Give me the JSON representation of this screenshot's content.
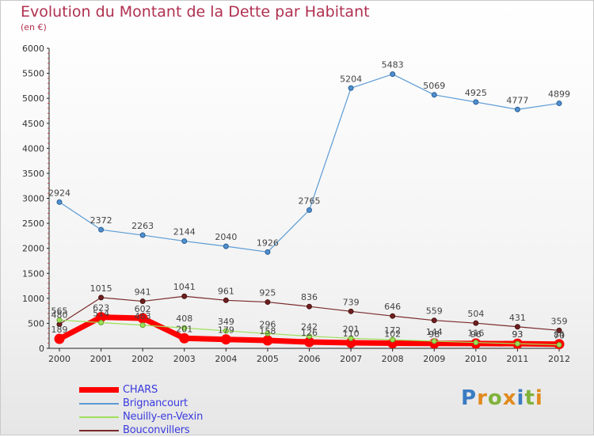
{
  "title": "Evolution du Montant de la Dette par Habitant",
  "subtitle": "(en €)",
  "brand": "Proxiti",
  "chart_data": {
    "type": "line",
    "title": "Evolution du Montant de la Dette par Habitant",
    "ylabel": "(en €)",
    "xlabel": "",
    "categories": [
      "2000",
      "2001",
      "2002",
      "2003",
      "2004",
      "2005",
      "2006",
      "2007",
      "2008",
      "2009",
      "2010",
      "2011",
      "2012"
    ],
    "ylim": [
      0,
      6000
    ],
    "yticks": [
      0,
      500,
      1000,
      1500,
      2000,
      2500,
      3000,
      3500,
      4000,
      4500,
      5000,
      5500,
      6000
    ],
    "grid": false,
    "legend_position": "bottom-left",
    "series": [
      {
        "name": "CHARS",
        "color": "#ff0000",
        "values": [
          189,
          623,
          602,
          201,
          179,
          158,
          126,
          110,
          102,
          98,
          96,
          93,
          84
        ]
      },
      {
        "name": "Brignancourt",
        "color": "#5b9bd5",
        "values": [
          2924,
          2372,
          2263,
          2144,
          2040,
          1926,
          2765,
          5204,
          5483,
          5069,
          4925,
          4777,
          4899
        ]
      },
      {
        "name": "Neuilly-en-Vexin",
        "color": "#9fe05a",
        "values": [
          565,
          514,
          463,
          408,
          349,
          296,
          242,
          201,
          172,
          144,
          116,
          93,
          70
        ]
      },
      {
        "name": "Bouconvillers",
        "color": "#7a2a2a",
        "values": [
          480,
          1015,
          941,
          1041,
          961,
          925,
          836,
          739,
          646,
          559,
          504,
          431,
          359
        ]
      }
    ]
  }
}
